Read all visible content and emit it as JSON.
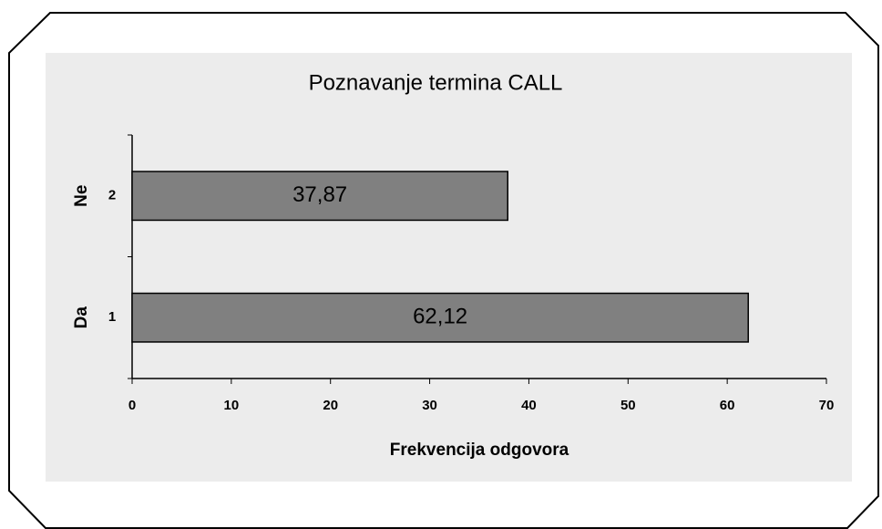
{
  "chart_data": {
    "type": "bar",
    "orientation": "horizontal",
    "title": "Poznavanje termina CALL",
    "xlabel": "Frekvencija odgovora",
    "categories": [
      "1",
      "2"
    ],
    "category_names": [
      "Da",
      "Ne"
    ],
    "values": [
      62.12,
      37.87
    ],
    "value_labels": [
      "62,12",
      "37,87"
    ],
    "color": "#808080",
    "xlim": [
      0,
      70
    ],
    "xticks": [
      0,
      10,
      20,
      30,
      40,
      50,
      60,
      70
    ],
    "grid": false
  }
}
